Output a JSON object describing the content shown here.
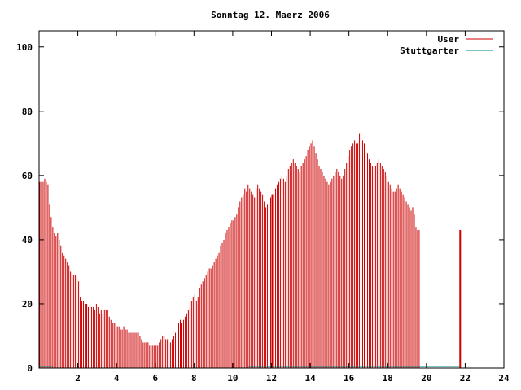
{
  "chart_data": {
    "type": "bar",
    "title": "Sonntag 12. Maerz 2006",
    "xlabel": "",
    "ylabel": "",
    "xlim": [
      0,
      24
    ],
    "ylim": [
      0,
      105
    ],
    "x_ticks": [
      2,
      4,
      6,
      8,
      10,
      12,
      14,
      16,
      18,
      20,
      22,
      24
    ],
    "y_ticks": [
      0,
      20,
      40,
      60,
      80,
      100
    ],
    "legend_position": "top-right",
    "grid": false,
    "series": [
      {
        "name": "User",
        "color": "#cc0000",
        "points_per_hour": 12,
        "values": [
          58,
          58,
          58,
          59,
          58,
          57,
          51,
          47,
          44,
          42,
          41,
          42,
          40,
          38,
          36,
          35,
          34,
          33,
          32,
          30,
          29,
          29,
          29,
          28,
          27,
          22,
          21,
          21,
          20,
          20,
          19,
          19,
          19,
          19,
          18,
          20,
          19,
          17,
          18,
          17,
          18,
          18,
          18,
          16,
          15,
          14,
          14,
          14,
          13,
          13,
          12,
          12,
          13,
          12,
          12,
          11,
          11,
          11,
          11,
          11,
          11,
          11,
          10,
          9,
          8,
          8,
          8,
          8,
          7,
          7,
          7,
          7,
          7,
          7,
          8,
          9,
          10,
          10,
          9,
          9,
          8,
          8,
          9,
          10,
          11,
          12,
          14,
          15,
          14,
          15,
          16,
          17,
          18,
          19,
          21,
          22,
          23,
          21,
          22,
          25,
          26,
          27,
          28,
          29,
          30,
          31,
          31,
          32,
          33,
          34,
          35,
          36,
          38,
          39,
          40,
          42,
          43,
          44,
          45,
          46,
          46,
          47,
          48,
          50,
          52,
          53,
          54,
          56,
          55,
          57,
          56,
          55,
          54,
          53,
          56,
          57,
          56,
          55,
          54,
          52,
          50,
          51,
          52,
          53,
          54,
          55,
          56,
          57,
          58,
          59,
          60,
          59,
          58,
          60,
          62,
          63,
          64,
          65,
          64,
          63,
          62,
          61,
          63,
          64,
          65,
          66,
          68,
          69,
          70,
          71,
          69,
          67,
          65,
          63,
          62,
          61,
          60,
          59,
          58,
          57,
          58,
          59,
          60,
          61,
          62,
          61,
          60,
          59,
          60,
          62,
          64,
          66,
          68,
          69,
          70,
          71,
          70,
          70,
          73,
          72,
          71,
          70,
          68,
          67,
          65,
          64,
          63,
          62,
          63,
          64,
          65,
          64,
          63,
          62,
          61,
          60,
          58,
          57,
          56,
          55,
          55,
          56,
          57,
          56,
          55,
          54,
          53,
          52,
          51,
          50,
          49,
          50,
          48,
          44,
          43,
          43
        ]
      },
      {
        "name": "Stuttgarter",
        "color": "#008b8b",
        "segments": [
          {
            "x": [
              0.0,
              0.7
            ],
            "y": 0.5
          },
          {
            "x": [
              10.8,
              21.7
            ],
            "y": 0.5
          }
        ]
      }
    ],
    "highlight_bars_at_hour": [
      2.4,
      7.3,
      12.0,
      21.7
    ]
  }
}
